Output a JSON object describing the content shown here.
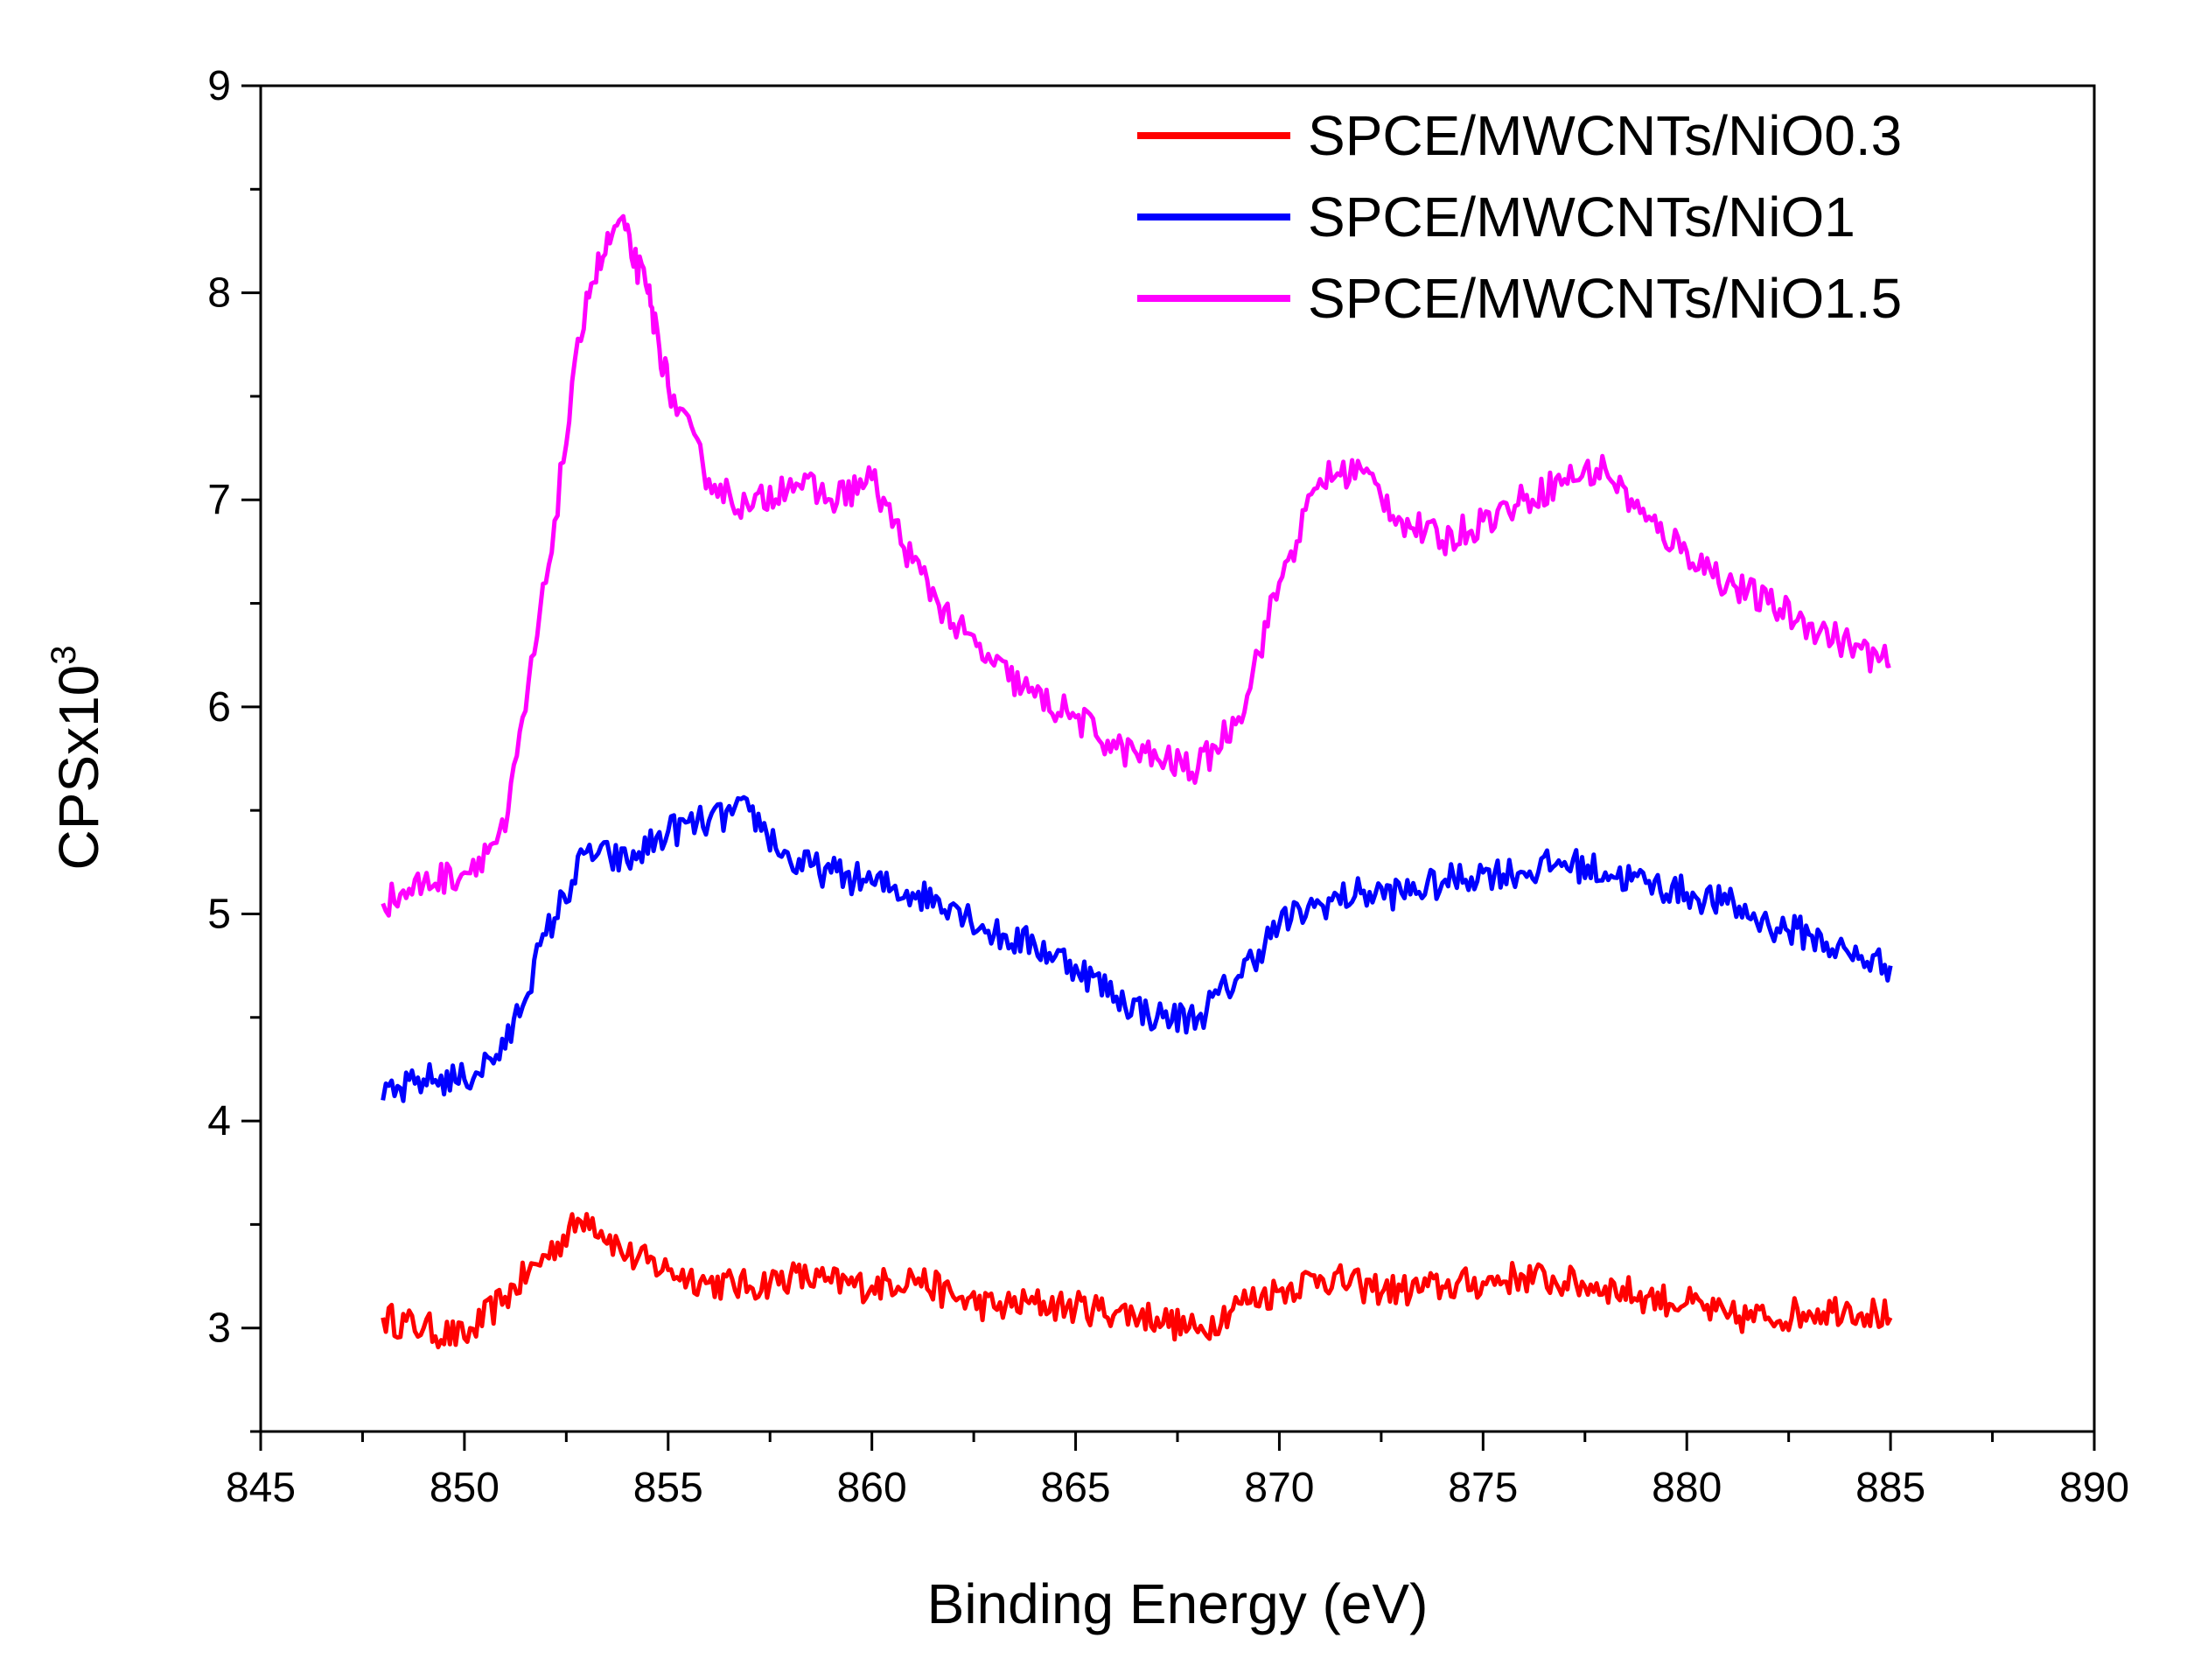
{
  "chart_data": {
    "type": "line",
    "xlabel": "Binding Energy (eV)",
    "ylabel": {
      "base": "CPSx10",
      "sup": "3"
    },
    "xlim": [
      845,
      890
    ],
    "ylim": [
      2.5,
      9
    ],
    "xticks": [
      "845",
      "850",
      "855",
      "860",
      "865",
      "870",
      "875",
      "880",
      "885",
      "890"
    ],
    "yticks": [
      "3",
      "4",
      "5",
      "6",
      "7",
      "8",
      "9"
    ],
    "grid": false,
    "legend_position": "top-right",
    "series": [
      {
        "name": "SPCE/MWCNTs/NiO0.3",
        "color": "#ff0000",
        "x": [
          848,
          849,
          850,
          851,
          852,
          853,
          854,
          855,
          856,
          857,
          858,
          859,
          860,
          861,
          862,
          863,
          864,
          865,
          866,
          867,
          868,
          869,
          870,
          871,
          872,
          873,
          874,
          875,
          876,
          877,
          878,
          879,
          880,
          881,
          882,
          883,
          884,
          885
        ],
        "y": [
          3.05,
          3.0,
          2.95,
          3.15,
          3.35,
          3.55,
          3.35,
          3.28,
          3.22,
          3.2,
          3.25,
          3.22,
          3.2,
          3.25,
          3.15,
          3.1,
          3.12,
          3.1,
          3.08,
          3.05,
          2.98,
          3.12,
          3.18,
          3.25,
          3.2,
          3.18,
          3.2,
          3.22,
          3.25,
          3.22,
          3.2,
          3.15,
          3.12,
          3.05,
          3.05,
          3.08,
          3.1,
          3.05
        ]
      },
      {
        "name": "SPCE/MWCNTs/NiO1",
        "color": "#0000ff",
        "x": [
          848,
          849,
          850,
          851,
          852,
          853,
          854,
          855,
          856,
          857,
          858,
          859,
          860,
          861,
          862,
          863,
          864,
          865,
          866,
          867,
          868,
          869,
          870,
          871,
          872,
          873,
          874,
          875,
          876,
          877,
          878,
          879,
          880,
          881,
          882,
          883,
          884,
          885
        ],
        "y": [
          4.1,
          4.2,
          4.2,
          4.35,
          4.9,
          5.3,
          5.25,
          5.4,
          5.45,
          5.5,
          5.25,
          5.2,
          5.15,
          5.1,
          5.05,
          4.9,
          4.85,
          4.75,
          4.6,
          4.5,
          4.5,
          4.7,
          4.95,
          5.05,
          5.1,
          5.1,
          5.15,
          5.2,
          5.2,
          5.25,
          5.2,
          5.15,
          5.1,
          5.05,
          4.95,
          4.9,
          4.8,
          4.75
        ]
      },
      {
        "name": "SPCE/MWCNTs/NiO1.5",
        "color": "#ff00ff",
        "x": [
          848,
          849,
          850,
          851,
          852,
          853,
          853.8,
          854.5,
          855,
          856,
          857,
          858,
          859,
          860,
          861,
          862,
          863,
          864,
          865,
          866,
          867,
          868,
          869,
          870,
          871,
          872,
          873,
          874,
          875,
          876,
          877,
          878,
          879,
          880,
          881,
          882,
          883,
          884,
          885
        ],
        "y": [
          5.05,
          5.15,
          5.2,
          5.4,
          6.6,
          8.0,
          8.35,
          8.0,
          7.55,
          7.1,
          6.95,
          7.1,
          7.0,
          7.1,
          6.7,
          6.4,
          6.2,
          6.05,
          5.95,
          5.8,
          5.75,
          5.7,
          5.95,
          6.6,
          7.1,
          7.15,
          6.9,
          6.8,
          6.9,
          7.0,
          7.1,
          7.15,
          6.9,
          6.75,
          6.6,
          6.5,
          6.4,
          6.3,
          6.2
        ]
      }
    ]
  }
}
